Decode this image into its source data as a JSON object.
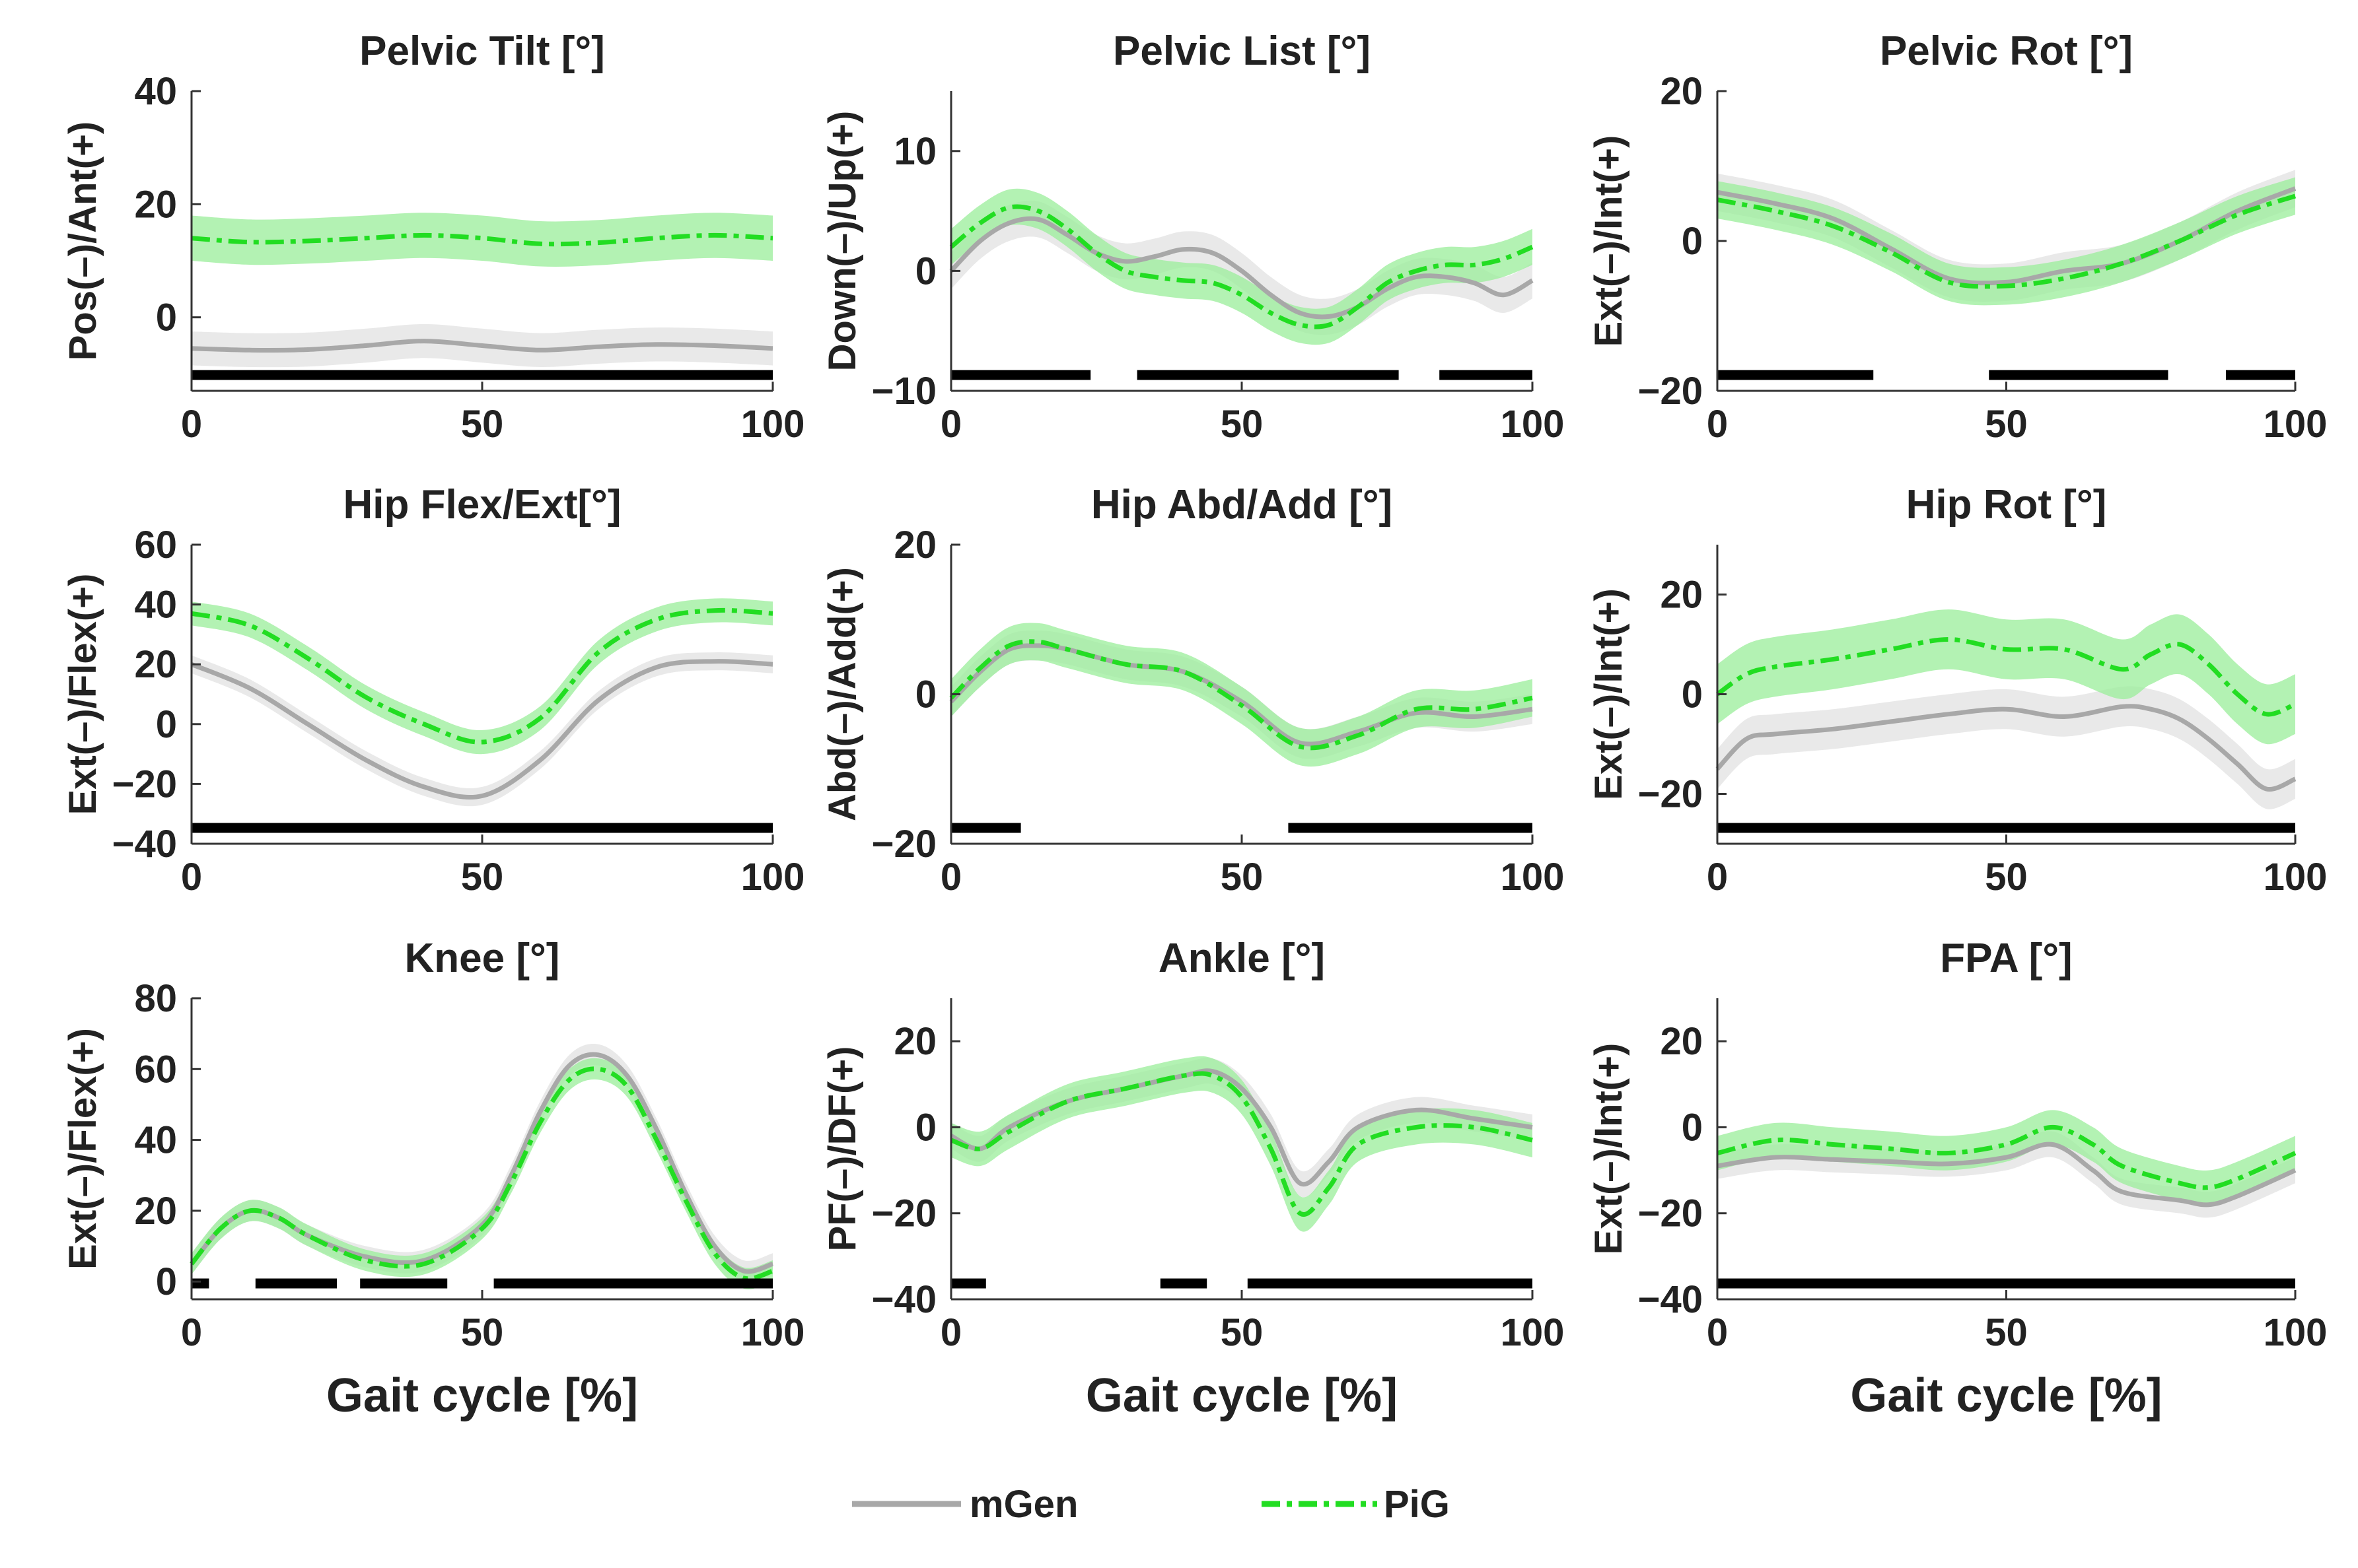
{
  "figure": {
    "xlabel": "Gait cycle [%]",
    "colors": {
      "mGen": "#a8a8a8",
      "mGen_band": "#e2e2e2",
      "PiG": "#22dd22",
      "PiG_band": "#99ee99",
      "sig": "#000000"
    }
  },
  "legend": {
    "items": [
      {
        "name": "mGen"
      },
      {
        "name": "PiG"
      }
    ],
    "placement": "bottom-center"
  },
  "chart_data": [
    {
      "type": "line",
      "title": "Pelvic Tilt [°]",
      "ylabel": "Pos(–)/Ant(+)",
      "xlim": [
        0,
        100
      ],
      "ylim": [
        -13,
        40
      ],
      "xticks": [
        0,
        50,
        100
      ],
      "yticks": [
        0,
        20,
        40
      ],
      "x": [
        0,
        10,
        20,
        30,
        40,
        50,
        60,
        70,
        80,
        90,
        100
      ],
      "series": [
        {
          "name": "mGen",
          "values": [
            -5.5,
            -5.8,
            -5.7,
            -5,
            -4.2,
            -5,
            -5.8,
            -5.2,
            -4.8,
            -5,
            -5.5
          ],
          "sd": 3
        },
        {
          "name": "PiG",
          "values": [
            14,
            13.3,
            13.5,
            14,
            14.5,
            14,
            13,
            13.2,
            14,
            14.5,
            14
          ],
          "sd": 4
        }
      ],
      "significance": [
        [
          0,
          100
        ]
      ]
    },
    {
      "type": "line",
      "title": "Pelvic List [°]",
      "ylabel": "Down(–)/Up(+)",
      "xlim": [
        0,
        100
      ],
      "ylim": [
        -10,
        15
      ],
      "xticks": [
        0,
        50,
        100
      ],
      "yticks": [
        -10,
        0,
        10
      ],
      "x": [
        0,
        5,
        10,
        15,
        20,
        25,
        30,
        35,
        40,
        45,
        50,
        55,
        60,
        65,
        70,
        75,
        80,
        85,
        90,
        95,
        100
      ],
      "series": [
        {
          "name": "mGen",
          "values": [
            0,
            2.5,
            4,
            4.3,
            3,
            1.5,
            0.8,
            1.2,
            1.8,
            1.5,
            0,
            -2,
            -3.5,
            -3.8,
            -3,
            -1.5,
            -0.5,
            -0.5,
            -1,
            -2,
            -0.8
          ],
          "sd": 1.5
        },
        {
          "name": "PiG",
          "values": [
            2,
            4,
            5.3,
            5,
            3.5,
            1.5,
            0,
            -0.5,
            -0.8,
            -1,
            -2,
            -3.5,
            -4.5,
            -4.5,
            -3,
            -1,
            0,
            0.5,
            0.5,
            1,
            2
          ],
          "sd": 1.5
        }
      ],
      "significance": [
        [
          0,
          24
        ],
        [
          32,
          77
        ],
        [
          84,
          100
        ]
      ]
    },
    {
      "type": "line",
      "title": "Pelvic Rot [°]",
      "ylabel": "Ext(–)/Int(+)",
      "xlim": [
        0,
        100
      ],
      "ylim": [
        -20,
        20
      ],
      "xticks": [
        0,
        50,
        100
      ],
      "yticks": [
        -20,
        0,
        20
      ],
      "x": [
        0,
        10,
        20,
        30,
        40,
        50,
        60,
        70,
        80,
        90,
        100
      ],
      "series": [
        {
          "name": "mGen",
          "values": [
            6.5,
            5,
            3,
            -1,
            -5,
            -5.5,
            -4,
            -3,
            0,
            4,
            7
          ],
          "sd": 2.5
        },
        {
          "name": "PiG",
          "values": [
            5.5,
            4,
            2,
            -1.5,
            -5.5,
            -6,
            -5,
            -3,
            0,
            3.5,
            6
          ],
          "sd": 2.5
        }
      ],
      "significance": [
        [
          0,
          27
        ],
        [
          47,
          78
        ],
        [
          88,
          100
        ]
      ]
    },
    {
      "type": "line",
      "title": "Hip Flex/Ext[°]",
      "ylabel": "Ext(–)/Flex(+)",
      "xlim": [
        0,
        100
      ],
      "ylim": [
        -40,
        60
      ],
      "xticks": [
        0,
        50,
        100
      ],
      "yticks": [
        -40,
        -20,
        0,
        20,
        40,
        60
      ],
      "x": [
        0,
        10,
        20,
        30,
        40,
        50,
        60,
        70,
        80,
        90,
        100
      ],
      "series": [
        {
          "name": "mGen",
          "values": [
            20,
            12,
            0,
            -12,
            -21,
            -24,
            -12,
            8,
            19,
            21,
            20
          ],
          "sd": 3
        },
        {
          "name": "PiG",
          "values": [
            37,
            33,
            22,
            9,
            0,
            -6,
            2,
            24,
            35,
            38,
            37
          ],
          "sd": 4
        }
      ],
      "significance": [
        [
          0,
          100
        ]
      ]
    },
    {
      "type": "line",
      "title": "Hip Abd/Add [°]",
      "ylabel": "Abd(–)/Add(+)",
      "xlim": [
        0,
        100
      ],
      "ylim": [
        -20,
        20
      ],
      "xticks": [
        0,
        50,
        100
      ],
      "yticks": [
        -20,
        0,
        20
      ],
      "x": [
        0,
        5,
        10,
        15,
        20,
        30,
        40,
        50,
        60,
        70,
        80,
        90,
        100
      ],
      "series": [
        {
          "name": "mGen",
          "values": [
            -1,
            3,
            6,
            6.5,
            6,
            4,
            3,
            -1,
            -6.5,
            -5,
            -2.5,
            -3,
            -2
          ],
          "sd": 2
        },
        {
          "name": "PiG",
          "values": [
            -0.5,
            3.5,
            6.5,
            7,
            6,
            4,
            3,
            -1.5,
            -7,
            -5.5,
            -2,
            -2,
            -0.5
          ],
          "sd": 2.5
        }
      ],
      "significance": [
        [
          0,
          12
        ],
        [
          58,
          100
        ]
      ]
    },
    {
      "type": "line",
      "title": "Hip Rot [°]",
      "ylabel": "Ext(–)/Int(+)",
      "xlim": [
        0,
        100
      ],
      "ylim": [
        -30,
        30
      ],
      "xticks": [
        0,
        50,
        100
      ],
      "yticks": [
        -20,
        0,
        20
      ],
      "x": [
        0,
        5,
        10,
        20,
        30,
        40,
        50,
        60,
        70,
        75,
        80,
        85,
        90,
        95,
        100
      ],
      "series": [
        {
          "name": "mGen",
          "values": [
            -15,
            -9,
            -8,
            -7,
            -5.5,
            -4,
            -3,
            -4.5,
            -2.5,
            -3,
            -5,
            -9,
            -14,
            -19,
            -17
          ],
          "sd": 4
        },
        {
          "name": "PiG",
          "values": [
            0,
            4,
            5.5,
            7,
            9,
            11,
            9,
            9,
            5,
            8,
            10,
            6,
            0,
            -4,
            -2
          ],
          "sd": 6
        }
      ],
      "significance": [
        [
          0,
          100
        ]
      ]
    },
    {
      "type": "line",
      "title": "Knee [°]",
      "ylabel": "Ext(–)/Flex(+)",
      "xlim": [
        0,
        100
      ],
      "ylim": [
        -5,
        80
      ],
      "xticks": [
        0,
        50,
        100
      ],
      "yticks": [
        0,
        20,
        40,
        60,
        80
      ],
      "x": [
        0,
        5,
        10,
        15,
        20,
        30,
        40,
        50,
        55,
        60,
        65,
        70,
        75,
        80,
        85,
        90,
        95,
        100
      ],
      "series": [
        {
          "name": "mGen",
          "values": [
            5,
            15,
            20,
            18,
            13,
            7,
            6,
            16,
            30,
            48,
            61,
            64,
            58,
            43,
            25,
            10,
            3,
            5
          ],
          "sd": 3
        },
        {
          "name": "PiG",
          "values": [
            5,
            15,
            20,
            18,
            13,
            6,
            5,
            15,
            28,
            45,
            57,
            60,
            55,
            40,
            23,
            8,
            1,
            3
          ],
          "sd": 3
        }
      ],
      "significance": [
        [
          0,
          3
        ],
        [
          11,
          25
        ],
        [
          29,
          44
        ],
        [
          52,
          100
        ]
      ]
    },
    {
      "type": "line",
      "title": "Ankle [°]",
      "ylabel": "PF(–)/DF(+)",
      "xlim": [
        0,
        100
      ],
      "ylim": [
        -40,
        30
      ],
      "xticks": [
        0,
        50,
        100
      ],
      "yticks": [
        -40,
        -20,
        0,
        20
      ],
      "x": [
        0,
        5,
        10,
        20,
        30,
        40,
        45,
        50,
        55,
        60,
        65,
        70,
        80,
        90,
        100
      ],
      "series": [
        {
          "name": "mGen",
          "values": [
            -2,
            -5,
            0,
            6,
            9,
            12,
            13,
            9,
            0,
            -13,
            -8,
            0,
            4,
            2,
            0
          ],
          "sd": 3
        },
        {
          "name": "PiG",
          "values": [
            -3,
            -5,
            -1,
            6,
            9,
            12,
            12,
            7,
            -5,
            -20,
            -14,
            -4,
            0,
            0,
            -3
          ],
          "sd": 4
        }
      ],
      "significance": [
        [
          0,
          6
        ],
        [
          36,
          44
        ],
        [
          51,
          100
        ]
      ]
    },
    {
      "type": "line",
      "title": "FPA [°]",
      "ylabel": "Ext(–)/Int(+)",
      "xlim": [
        0,
        100
      ],
      "ylim": [
        -40,
        30
      ],
      "xticks": [
        0,
        50,
        100
      ],
      "yticks": [
        -40,
        -20,
        0,
        20
      ],
      "x": [
        0,
        10,
        20,
        30,
        40,
        50,
        58,
        65,
        70,
        80,
        85,
        90,
        100
      ],
      "series": [
        {
          "name": "mGen",
          "values": [
            -9,
            -7,
            -7.5,
            -8,
            -8.5,
            -7,
            -4,
            -10,
            -15,
            -17,
            -18,
            -16,
            -10
          ],
          "sd": 3
        },
        {
          "name": "PiG",
          "values": [
            -6,
            -3,
            -4,
            -5,
            -6,
            -4,
            0,
            -4,
            -9,
            -13,
            -14,
            -12,
            -6
          ],
          "sd": 4
        }
      ],
      "significance": [
        [
          0,
          100
        ]
      ]
    }
  ]
}
